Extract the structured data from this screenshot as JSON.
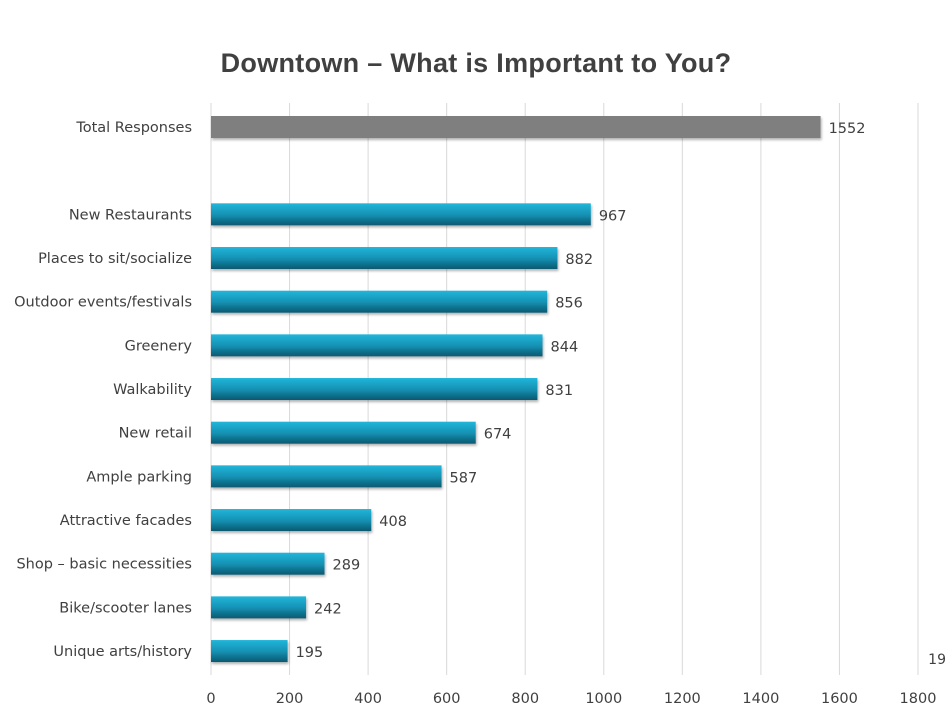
{
  "page_number": "19",
  "chart_data": {
    "type": "bar",
    "orientation": "horizontal",
    "title": "Downtown – What is Important to You?",
    "categories": [
      "Total Responses",
      "",
      "New Restaurants",
      "Places to sit/socialize",
      "Outdoor events/festivals",
      "Greenery",
      "Walkability",
      "New retail",
      "Ample parking",
      "Attractive facades",
      "Shop – basic necessities",
      "Bike/scooter lanes",
      "Unique arts/history"
    ],
    "values": [
      1552,
      null,
      967,
      882,
      856,
      844,
      831,
      674,
      587,
      408,
      289,
      242,
      195
    ],
    "xlim": [
      0,
      1800
    ],
    "xticks": [
      "0",
      "200",
      "400",
      "600",
      "800",
      "1000",
      "1200",
      "1400",
      "1600",
      "1800"
    ],
    "grid": "vertical",
    "colors": {
      "total": "#7f7f7f",
      "bars_top": "#1fb0d4",
      "bars_bottom": "#0a5870"
    },
    "data_labels": true
  }
}
